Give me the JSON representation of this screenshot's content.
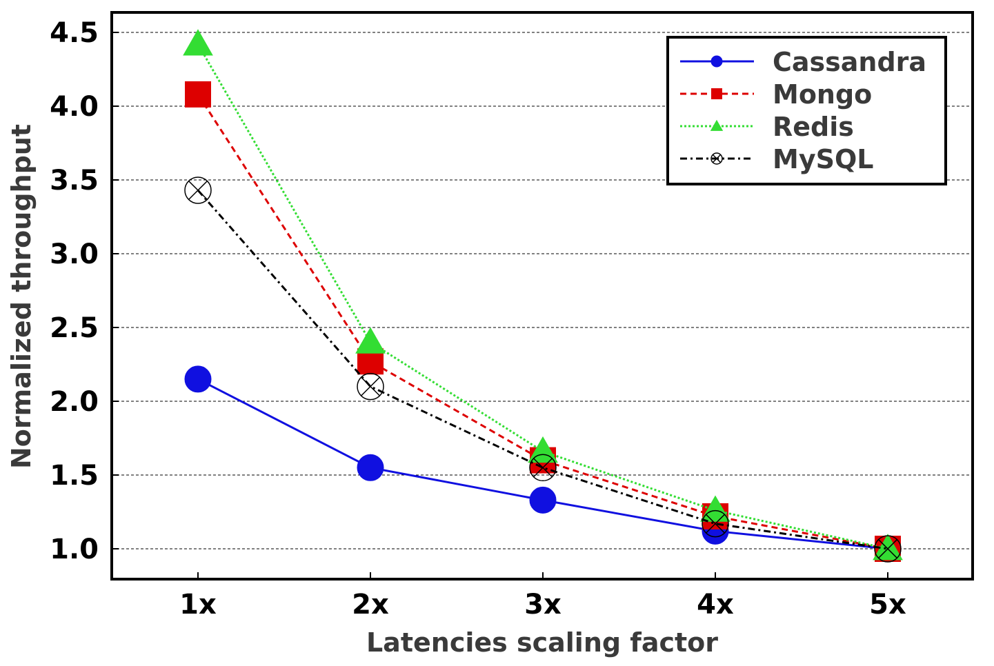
{
  "chart_data": {
    "type": "line",
    "title": "",
    "xlabel": "Latencies scaling factor",
    "ylabel": "Normalized throughput",
    "categories": [
      "1x",
      "2x",
      "3x",
      "4x",
      "5x"
    ],
    "yticks": [
      "1.0",
      "1.5",
      "2.0",
      "2.5",
      "3.0",
      "3.5",
      "4.0",
      "4.5"
    ],
    "ytick_values": [
      1.0,
      1.5,
      2.0,
      2.5,
      3.0,
      3.5,
      4.0,
      4.5
    ],
    "ylim": [
      0.8,
      4.65
    ],
    "grid": "horizontal dashed",
    "legend_position": "top-right",
    "series": [
      {
        "name": "Cassandra",
        "values": [
          2.15,
          1.55,
          1.33,
          1.12,
          1.0
        ],
        "color": "#1010e0",
        "marker": "circle",
        "dash": "solid"
      },
      {
        "name": "Mongo",
        "values": [
          4.08,
          2.27,
          1.6,
          1.22,
          1.0
        ],
        "color": "#dd0000",
        "marker": "square",
        "dash": "dashed"
      },
      {
        "name": "Redis",
        "values": [
          4.42,
          2.4,
          1.66,
          1.26,
          1.0
        ],
        "color": "#33dd33",
        "marker": "triangle",
        "dash": "dotted"
      },
      {
        "name": "MySQL",
        "values": [
          3.43,
          2.1,
          1.55,
          1.17,
          1.0
        ],
        "color": "#000000",
        "marker": "circle-x",
        "dash": "dashdot"
      }
    ]
  }
}
